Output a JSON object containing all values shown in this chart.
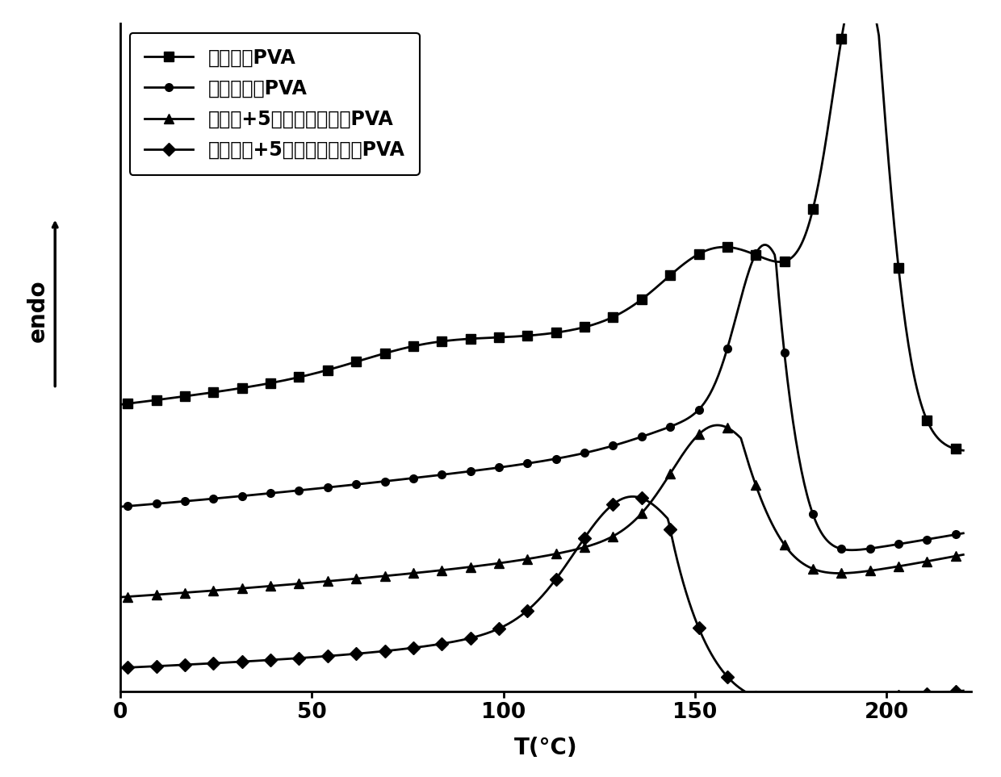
{
  "xlabel": "T(°C)",
  "legend_labels": [
    "热干燥的PVA",
    "冷冻干燥的PVA",
    "热干燥+5份小分子改性的PVA",
    "冷冻干燥+5份小分子改性的PVA"
  ],
  "line_color": "#000000",
  "marker_size_sq": 8,
  "marker_size_circ": 7,
  "marker_size_tri": 8,
  "marker_size_diam": 8,
  "linewidth": 2.0,
  "background_color": "#ffffff",
  "font_size": 20,
  "legend_font_size": 17,
  "tick_font_size": 19
}
